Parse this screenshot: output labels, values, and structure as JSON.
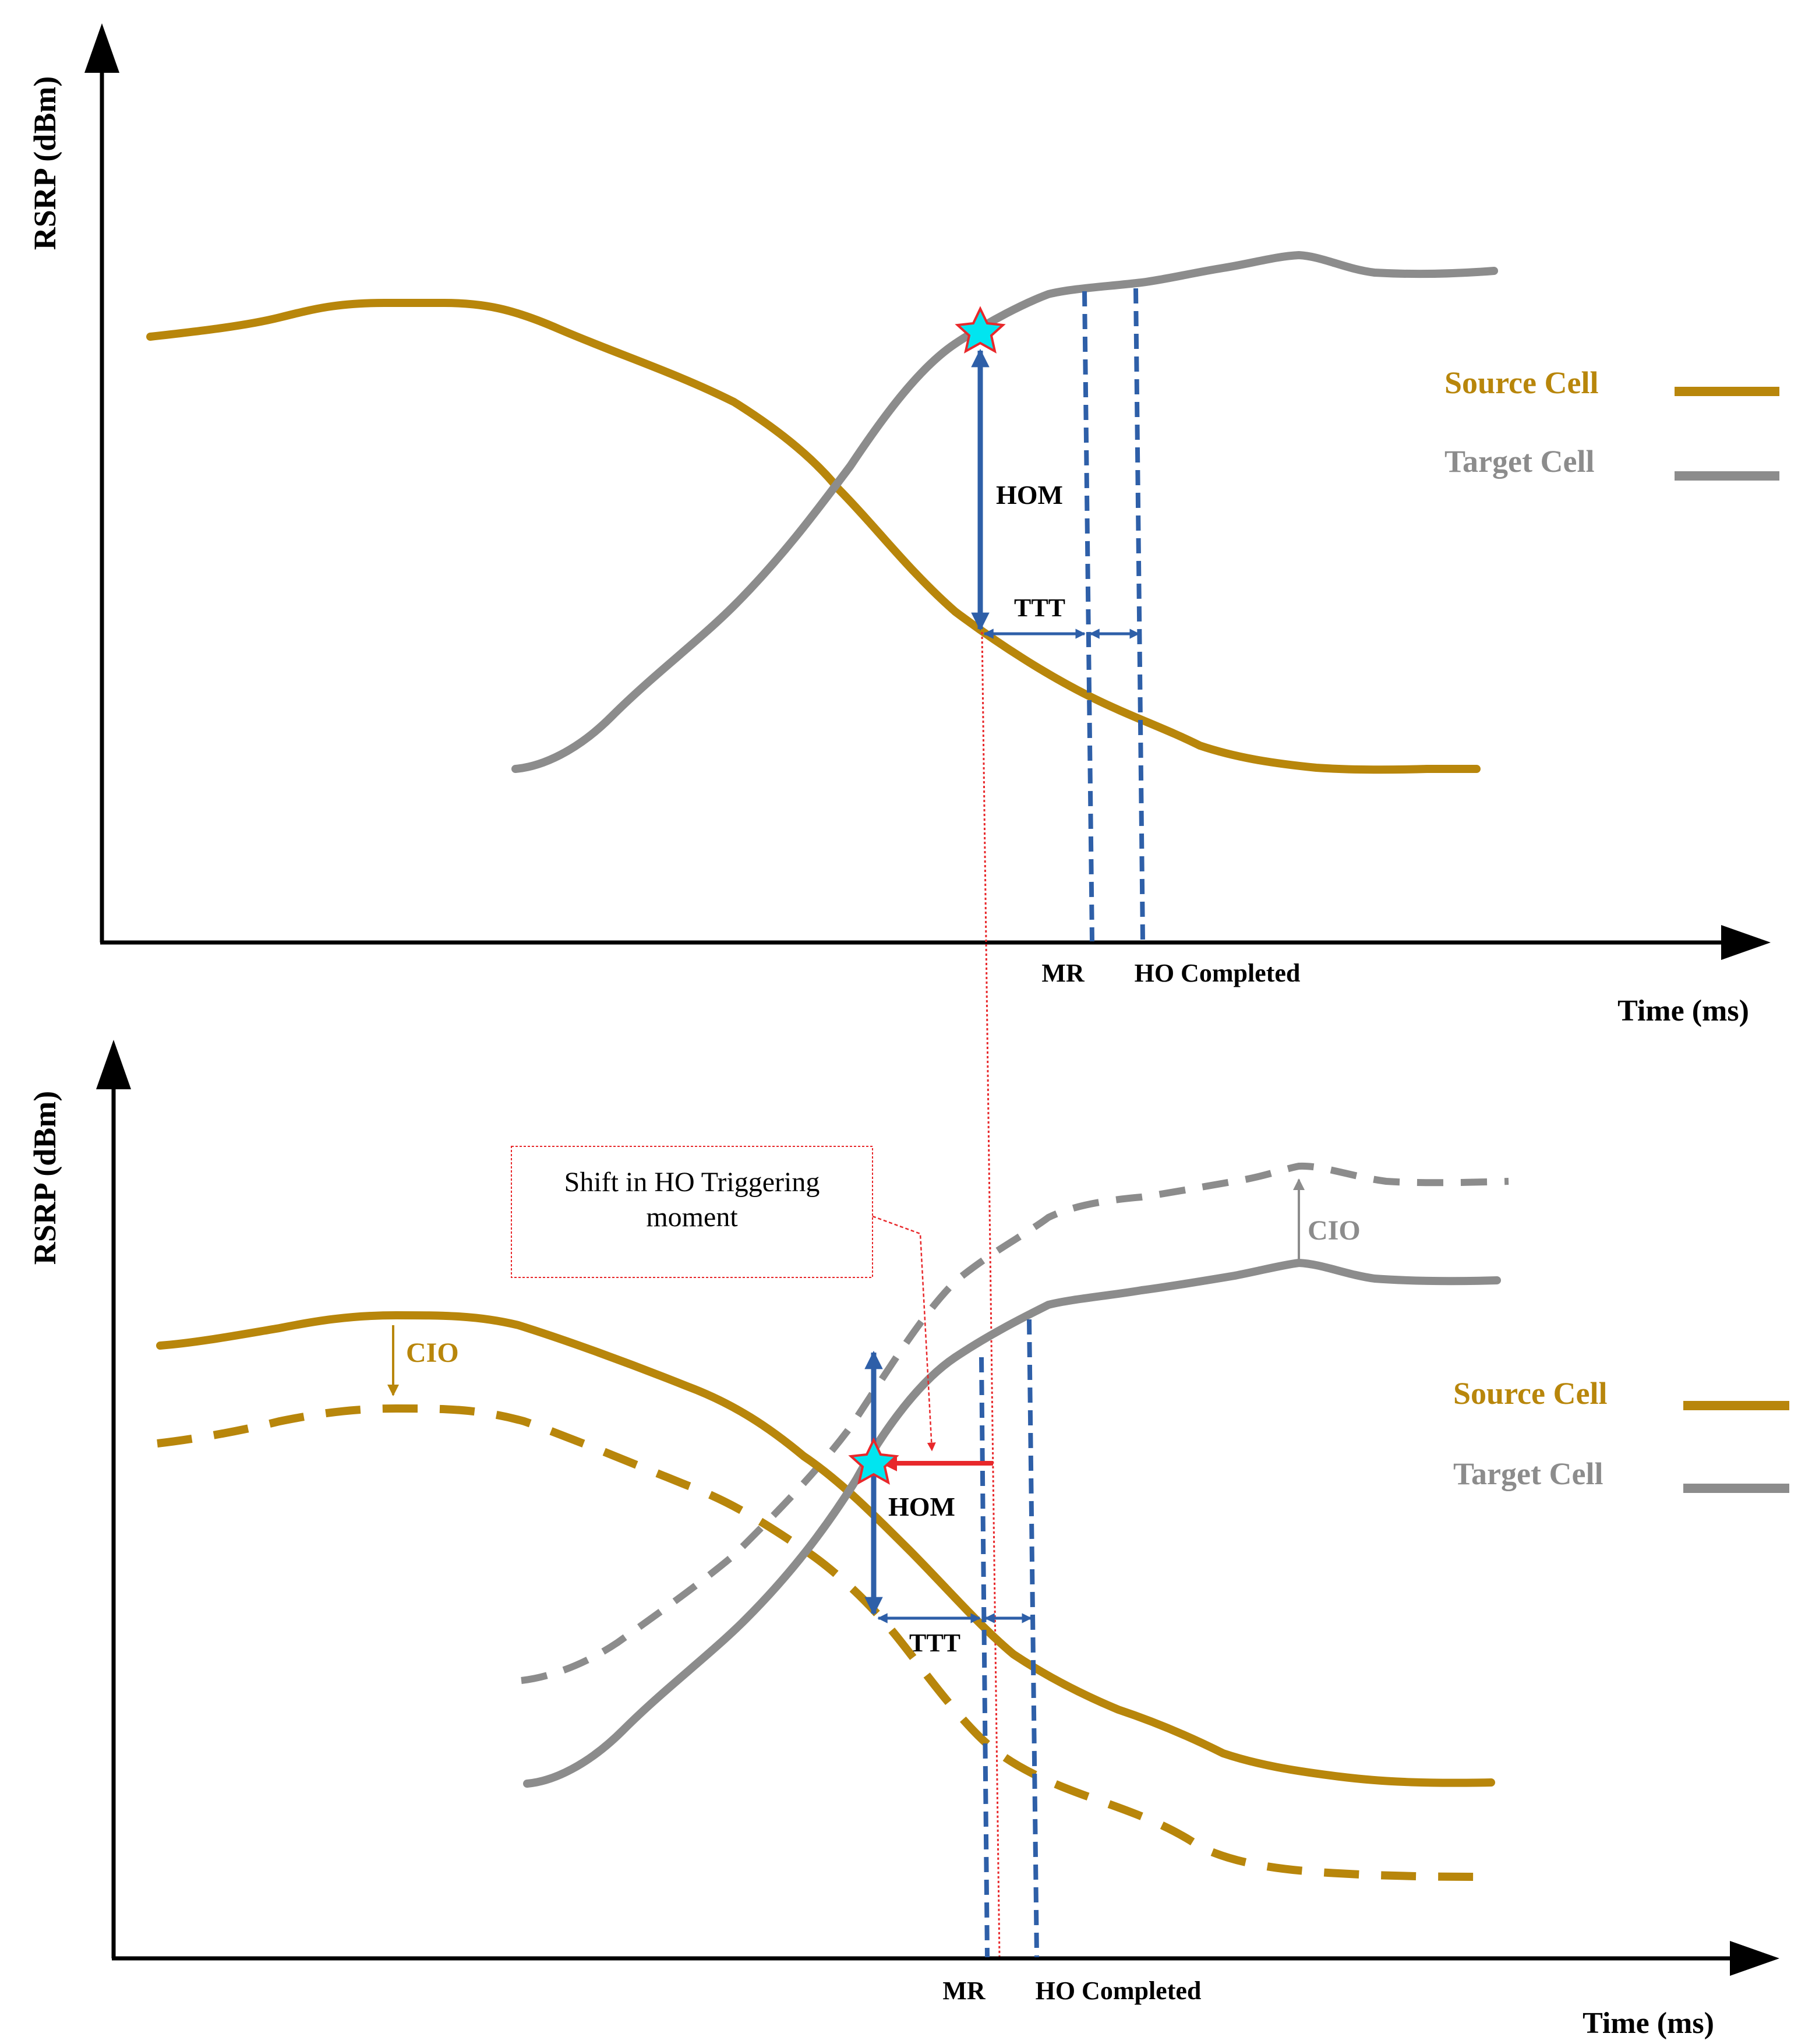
{
  "colors": {
    "source": "#B8860B",
    "target": "#8C8C8C",
    "marker": "#2E5FA8",
    "shift": "#E8282B",
    "axis": "#000000",
    "star_fill": "#00E5F0",
    "star_stroke": "#E8282B"
  },
  "top_panel": {
    "y_axis_label": "RSRP (dBm)",
    "x_axis_label": "Time (ms)",
    "hom_label": "HOM",
    "ttt_label": "TTT",
    "mr_label": "MR",
    "ho_completed_label": "HO Completed",
    "legend": {
      "source": "Source Cell",
      "target": "Target Cell"
    }
  },
  "bottom_panel": {
    "y_axis_label": "RSRP (dBm)",
    "x_axis_label": "Time (ms)",
    "hom_label": "HOM",
    "ttt_label": "TTT",
    "mr_label": "MR",
    "ho_completed_label": "HO Completed",
    "cio_source_label": "CIO",
    "cio_target_label": "CIO",
    "shift_note": "Shift in HO Triggering moment",
    "legend": {
      "source": "Source Cell",
      "target": "Target Cell"
    }
  }
}
